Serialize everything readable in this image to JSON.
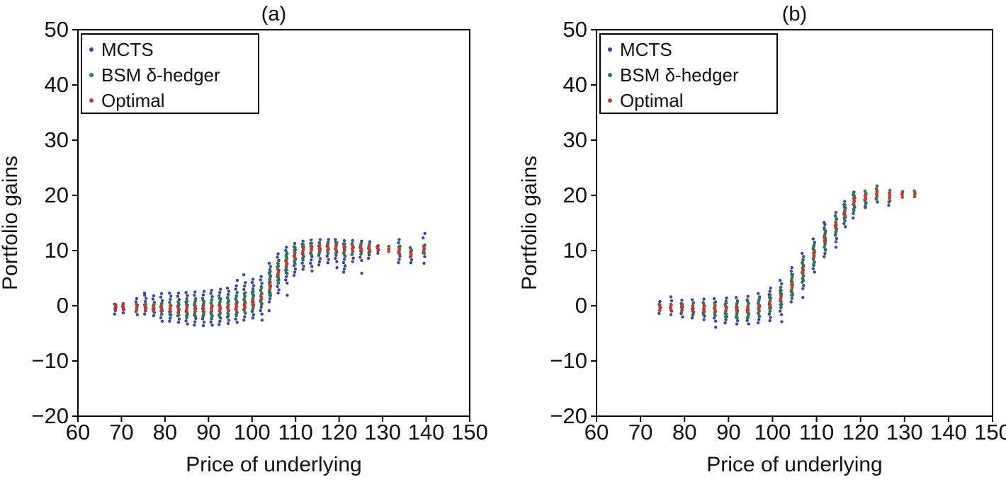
{
  "figure": {
    "background": "#ffffff"
  },
  "chart_data": [
    {
      "type": "scatter",
      "title": "(a)",
      "xlabel": "Price of underlying",
      "ylabel": "Portfolio gains",
      "xlim": [
        60,
        150
      ],
      "ylim": [
        -20,
        50
      ],
      "xticks": [
        60,
        70,
        80,
        90,
        100,
        110,
        120,
        130,
        140,
        150
      ],
      "yticks": [
        -20,
        -10,
        0,
        10,
        20,
        30,
        40,
        50
      ],
      "grid": false,
      "legend": {
        "position": "upper-left",
        "entries": [
          {
            "label": "MCTS",
            "color": "#3b469c"
          },
          {
            "label": "BSM δ-hedger",
            "color": "#2a7a4b"
          },
          {
            "label": "Optimal",
            "color": "#c33a31"
          }
        ]
      },
      "clusters": [
        {
          "x": 68.6,
          "opt": -0.2,
          "bsm": [
            -0.5,
            0.1
          ],
          "mcts": [
            -1.5,
            0.3
          ]
        },
        {
          "x": 70.4,
          "opt": -0.2,
          "bsm": [
            -0.5,
            0.2
          ],
          "mcts": [
            -1.3,
            0.4
          ]
        },
        {
          "x": 73.5,
          "opt": -0.3,
          "bsm": [
            -0.9,
            0.3
          ],
          "mcts": [
            -1.6,
            1.3
          ]
        },
        {
          "x": 75.5,
          "opt": -0.3,
          "bsm": [
            -0.9,
            0.3
          ],
          "mcts": [
            -1.5,
            1.9
          ],
          "out": [
            2.3
          ]
        },
        {
          "x": 77.4,
          "opt": -0.3,
          "bsm": [
            -1.0,
            0.3
          ],
          "mcts": [
            -1.8,
            1.8
          ]
        },
        {
          "x": 79.2,
          "opt": -0.4,
          "bsm": [
            -1.5,
            0.5
          ],
          "mcts": [
            -2.8,
            2.2
          ]
        },
        {
          "x": 81.2,
          "opt": -0.4,
          "bsm": [
            -1.6,
            0.6
          ],
          "mcts": [
            -2.8,
            2.3
          ]
        },
        {
          "x": 83.1,
          "opt": -0.5,
          "bsm": [
            -1.7,
            0.7
          ],
          "mcts": [
            -3.0,
            2.3
          ]
        },
        {
          "x": 85.0,
          "opt": -0.5,
          "bsm": [
            -1.8,
            0.8
          ],
          "mcts": [
            -3.3,
            2.4
          ]
        },
        {
          "x": 86.9,
          "opt": -0.5,
          "bsm": [
            -1.9,
            0.9
          ],
          "mcts": [
            -3.5,
            2.5
          ]
        },
        {
          "x": 88.8,
          "opt": -0.5,
          "bsm": [
            -2.0,
            1.0
          ],
          "mcts": [
            -3.6,
            2.6
          ]
        },
        {
          "x": 90.7,
          "opt": -0.4,
          "bsm": [
            -2.0,
            1.1
          ],
          "mcts": [
            -3.5,
            2.8
          ]
        },
        {
          "x": 92.6,
          "opt": -0.4,
          "bsm": [
            -1.9,
            1.3
          ],
          "mcts": [
            -3.4,
            3.0
          ]
        },
        {
          "x": 94.5,
          "opt": -0.3,
          "bsm": [
            -1.8,
            1.5
          ],
          "mcts": [
            -3.2,
            3.2
          ]
        },
        {
          "x": 96.4,
          "opt": -0.2,
          "bsm": [
            -1.6,
            1.8
          ],
          "mcts": [
            -3.0,
            3.6
          ],
          "out": [
            4.6
          ]
        },
        {
          "x": 98.3,
          "opt": 0.0,
          "bsm": [
            -1.2,
            2.2
          ],
          "mcts": [
            -2.6,
            4.2
          ],
          "out": [
            5.6
          ]
        },
        {
          "x": 100.2,
          "opt": 0.6,
          "bsm": [
            -0.8,
            2.6
          ],
          "mcts": [
            -2.2,
            4.8
          ]
        },
        {
          "x": 102.1,
          "opt": 1.6,
          "bsm": [
            0.2,
            3.3
          ],
          "mcts": [
            -1.5,
            5.3
          ],
          "out": [
            -2.6
          ]
        },
        {
          "x": 104.1,
          "opt": 3.7,
          "bsm": [
            1.9,
            6.2
          ],
          "mcts": [
            0.7,
            7.7
          ],
          "out": [
            -0.9
          ]
        },
        {
          "x": 106.0,
          "opt": 6.0,
          "bsm": [
            4.1,
            8.2
          ],
          "mcts": [
            2.3,
            9.4
          ]
        },
        {
          "x": 107.9,
          "opt": 7.8,
          "bsm": [
            6.0,
            9.6
          ],
          "mcts": [
            4.1,
            10.6
          ],
          "out": [
            1.9
          ]
        },
        {
          "x": 109.8,
          "opt": 9.2,
          "bsm": [
            7.6,
            10.6
          ],
          "mcts": [
            5.5,
            11.3
          ]
        },
        {
          "x": 111.7,
          "opt": 10.0,
          "bsm": [
            8.6,
            11.1
          ],
          "mcts": [
            6.6,
            11.7
          ]
        },
        {
          "x": 113.6,
          "opt": 10.4,
          "bsm": [
            9.2,
            11.3
          ],
          "mcts": [
            7.1,
            11.9
          ],
          "out": [
            6.3
          ]
        },
        {
          "x": 115.5,
          "opt": 10.5,
          "bsm": [
            9.4,
            11.4
          ],
          "mcts": [
            7.4,
            12.0
          ]
        },
        {
          "x": 117.4,
          "opt": 10.6,
          "bsm": [
            9.5,
            11.5
          ],
          "mcts": [
            7.8,
            12.0
          ]
        },
        {
          "x": 119.3,
          "opt": 10.6,
          "bsm": [
            9.5,
            11.5
          ],
          "mcts": [
            8.0,
            12.0
          ],
          "out": [
            6.9
          ]
        },
        {
          "x": 121.2,
          "opt": 10.3,
          "bsm": [
            9.1,
            11.2
          ],
          "mcts": [
            6.1,
            11.8
          ]
        },
        {
          "x": 123.1,
          "opt": 10.4,
          "bsm": [
            9.4,
            11.3
          ],
          "mcts": [
            8.0,
            11.8
          ]
        },
        {
          "x": 125.0,
          "opt": 10.4,
          "bsm": [
            9.5,
            11.3
          ],
          "mcts": [
            8.2,
            11.7
          ],
          "out": [
            5.9
          ]
        },
        {
          "x": 126.9,
          "opt": 10.4,
          "bsm": [
            9.6,
            11.2
          ],
          "mcts": [
            8.6,
            11.6
          ]
        },
        {
          "x": 128.9,
          "opt": 10.4,
          "bsm": [
            10.0,
            10.9
          ],
          "mcts": [
            9.5,
            10.7
          ]
        },
        {
          "x": 131.4,
          "opt": 10.3
        },
        {
          "x": 133.8,
          "opt": 10.0,
          "bsm": [
            9.4,
            10.7
          ],
          "mcts": [
            7.8,
            12.0
          ]
        },
        {
          "x": 136.5,
          "opt": 9.4,
          "bsm": [
            8.9,
            10.2
          ],
          "mcts": [
            7.8,
            10.5
          ]
        },
        {
          "x": 139.5,
          "opt": 10.2,
          "bsm": [
            9.5,
            10.8
          ],
          "mcts": [
            8.9,
            11.0
          ],
          "out": [
            13.1,
            12.3,
            7.7
          ]
        }
      ]
    },
    {
      "type": "scatter",
      "title": "(b)",
      "xlabel": "Price of underlying",
      "ylabel": "Portfolio gains",
      "xlim": [
        60,
        150
      ],
      "ylim": [
        -20,
        50
      ],
      "xticks": [
        60,
        70,
        80,
        90,
        100,
        110,
        120,
        130,
        140,
        150
      ],
      "yticks": [
        -20,
        -10,
        0,
        10,
        20,
        30,
        40,
        50
      ],
      "grid": false,
      "legend": {
        "position": "upper-left",
        "entries": [
          {
            "label": "MCTS",
            "color": "#3b469c"
          },
          {
            "label": "BSM δ-hedger",
            "color": "#2a7a4b"
          },
          {
            "label": "Optimal",
            "color": "#c33a31"
          }
        ]
      },
      "clusters": [
        {
          "x": 74.4,
          "opt": -0.3,
          "bsm": [
            -0.8,
            0.2
          ],
          "mcts": [
            -1.4,
            0.8
          ]
        },
        {
          "x": 76.9,
          "opt": -0.4,
          "bsm": [
            -0.9,
            0.2
          ],
          "mcts": [
            -1.6,
            0.9
          ],
          "out": [
            1.6
          ]
        },
        {
          "x": 79.4,
          "opt": -0.4,
          "bsm": [
            -1.2,
            0.3
          ],
          "mcts": [
            -2.0,
            1.0
          ]
        },
        {
          "x": 81.9,
          "opt": -0.5,
          "bsm": [
            -1.4,
            0.4
          ],
          "mcts": [
            -2.2,
            1.1
          ]
        },
        {
          "x": 84.4,
          "opt": -0.5,
          "bsm": [
            -1.6,
            0.4
          ],
          "mcts": [
            -2.5,
            1.2
          ]
        },
        {
          "x": 86.9,
          "opt": -0.5,
          "bsm": [
            -1.8,
            0.5
          ],
          "mcts": [
            -2.8,
            1.3
          ],
          "out": [
            -3.9
          ]
        },
        {
          "x": 89.4,
          "opt": -0.6,
          "bsm": [
            -2.0,
            0.5
          ],
          "mcts": [
            -3.1,
            1.4
          ]
        },
        {
          "x": 91.9,
          "opt": -0.6,
          "bsm": [
            -2.2,
            0.6
          ],
          "mcts": [
            -3.3,
            1.5
          ]
        },
        {
          "x": 94.4,
          "opt": -0.5,
          "bsm": [
            -2.2,
            0.8
          ],
          "mcts": [
            -3.3,
            1.7
          ]
        },
        {
          "x": 96.9,
          "opt": -0.3,
          "bsm": [
            -2.0,
            1.2
          ],
          "mcts": [
            -3.1,
            2.2
          ]
        },
        {
          "x": 99.4,
          "opt": 0.3,
          "bsm": [
            -1.4,
            2.0
          ],
          "mcts": [
            -2.7,
            3.2
          ]
        },
        {
          "x": 101.9,
          "opt": 1.5,
          "bsm": [
            -0.3,
            3.3
          ],
          "mcts": [
            -1.6,
            4.6
          ],
          "out": [
            -2.9
          ]
        },
        {
          "x": 104.4,
          "opt": 3.7,
          "bsm": [
            1.9,
            5.7
          ],
          "mcts": [
            0.7,
            6.9
          ]
        },
        {
          "x": 106.9,
          "opt": 6.3,
          "bsm": [
            4.5,
            8.3
          ],
          "mcts": [
            3.1,
            9.5
          ],
          "out": [
            1.5
          ]
        },
        {
          "x": 109.4,
          "opt": 9.3,
          "bsm": [
            7.5,
            11.1
          ],
          "mcts": [
            6.1,
            12.1
          ]
        },
        {
          "x": 111.9,
          "opt": 12.0,
          "bsm": [
            10.2,
            13.8
          ],
          "mcts": [
            8.9,
            14.7
          ],
          "out": [
            15.1
          ]
        },
        {
          "x": 114.4,
          "opt": 14.6,
          "bsm": [
            13.0,
            16.2
          ],
          "mcts": [
            11.6,
            16.9
          ],
          "out": [
            10.6
          ]
        },
        {
          "x": 116.4,
          "opt": 16.8,
          "bsm": [
            15.4,
            18.3
          ],
          "mcts": [
            14.3,
            18.9
          ]
        },
        {
          "x": 118.5,
          "opt": 18.9,
          "bsm": [
            17.5,
            20.4
          ],
          "mcts": [
            16.7,
            20.6
          ],
          "out": [
            15.9
          ]
        },
        {
          "x": 121.1,
          "opt": 19.6,
          "bsm": [
            18.5,
            20.8
          ],
          "mcts": [
            18.0,
            20.3
          ],
          "out": [
            17.8
          ]
        },
        {
          "x": 123.7,
          "opt": 20.4,
          "bsm": [
            19.3,
            21.7
          ],
          "mcts": [
            18.8,
            20.0
          ]
        },
        {
          "x": 126.6,
          "opt": 20.0,
          "bsm": [
            19.0,
            20.9
          ],
          "mcts": [
            18.8,
            19.6
          ],
          "out": [
            18.2
          ]
        },
        {
          "x": 129.5,
          "opt": 20.1,
          "bsm": [
            20.2,
            20.7
          ]
        },
        {
          "x": 132.3,
          "opt": 20.2,
          "bsm": [
            20.3,
            20.8
          ]
        }
      ]
    }
  ]
}
